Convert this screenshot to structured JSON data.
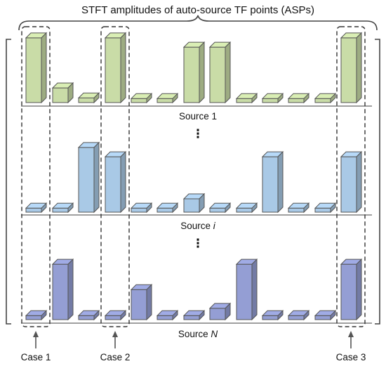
{
  "title": "STFT amplitudes of auto-source TF points (ASPs)",
  "ellipsis": "⋮",
  "rows": [
    {
      "label_text": "Source 1",
      "label_suffix": "",
      "bar_color": "#c9dca7",
      "values": [
        0.97,
        0.22,
        0.07,
        0.97,
        0.06,
        0.06,
        0.83,
        0.83,
        0.06,
        0.06,
        0.06,
        0.06,
        0.97
      ]
    },
    {
      "label_text": "Source ",
      "label_suffix": "i",
      "bar_color": "#a9c9e6",
      "values": [
        0.06,
        0.06,
        0.97,
        0.83,
        0.06,
        0.06,
        0.2,
        0.06,
        0.06,
        0.83,
        0.06,
        0.06,
        0.83
      ]
    },
    {
      "label_text": "Source ",
      "label_suffix": "N",
      "bar_color": "#949ed4",
      "values": [
        0.06,
        0.83,
        0.06,
        0.06,
        0.45,
        0.06,
        0.06,
        0.17,
        0.83,
        0.06,
        0.06,
        0.06,
        0.83
      ]
    }
  ],
  "cases": [
    {
      "label": "Case 1",
      "column": 0
    },
    {
      "label": "Case 2",
      "column": 3
    },
    {
      "label": "Case 3",
      "column": 12
    }
  ]
}
